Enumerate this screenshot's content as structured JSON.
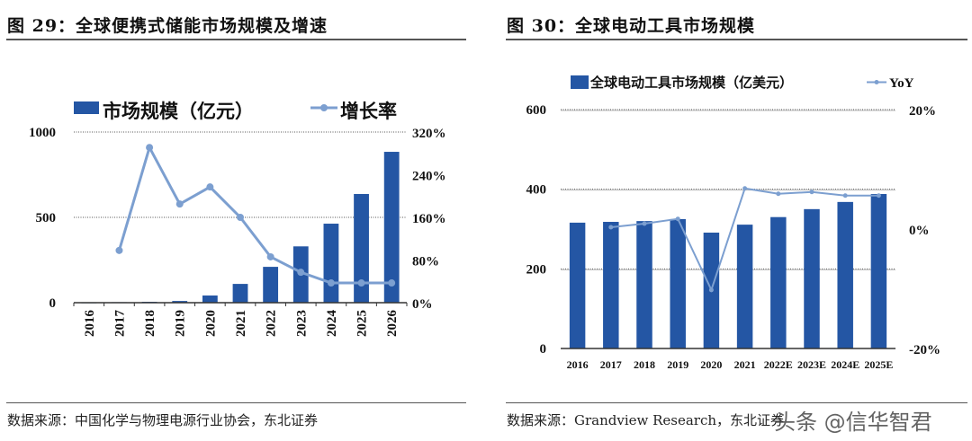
{
  "chart_data": [
    {
      "type": "bar",
      "title": "图 29：全球便携式储能市场规模及增速",
      "categories": [
        "2016",
        "2017",
        "2018",
        "2019",
        "2020",
        "2021",
        "2022",
        "2023",
        "2024",
        "2025",
        "2026"
      ],
      "series": [
        {
          "name": "市场规模（亿元）",
          "type": "bar",
          "axis": "left",
          "values": [
            2,
            3,
            5,
            10,
            42,
            110,
            210,
            330,
            463,
            637,
            884
          ]
        },
        {
          "name": "增长率",
          "type": "line",
          "axis": "right",
          "values": [
            null,
            98,
            291,
            185,
            217,
            160,
            86,
            57,
            37,
            37,
            37
          ]
        }
      ],
      "ylim": [
        0,
        1000
      ],
      "yticks": [
        "0",
        "500",
        "1000"
      ],
      "y2lim": [
        0,
        320
      ],
      "y2ticks": [
        "0%",
        "80%",
        "160%",
        "240%",
        "320%"
      ],
      "legend": "top",
      "source": "数据来源：中国化学与物理电源行业协会，东北证券"
    },
    {
      "type": "bar",
      "title": "图 30：全球电动工具市场规模",
      "categories": [
        "2016",
        "2017",
        "2018",
        "2019",
        "2020",
        "2021",
        "2022E",
        "2023E",
        "2024E",
        "2025E"
      ],
      "series": [
        {
          "name": "全球电动工具市场规模（亿美元）",
          "type": "bar",
          "axis": "left",
          "values": [
            316,
            318,
            320,
            325,
            291,
            311,
            330,
            350,
            368,
            388
          ]
        },
        {
          "name": "YoY",
          "type": "line",
          "axis": "right",
          "values": [
            null,
            0.3,
            0.9,
            1.7,
            -10.2,
            6.8,
            5.9,
            6.2,
            5.6,
            5.6
          ]
        }
      ],
      "ylim": [
        0,
        600
      ],
      "yticks": [
        "0",
        "200",
        "400",
        "600"
      ],
      "y2lim": [
        -20,
        20
      ],
      "y2ticks": [
        "-20%",
        "0%",
        "20%"
      ],
      "legend": "top",
      "source": "数据来源：Grandview Research，东北证券"
    }
  ],
  "colors": {
    "bar": "#2456a4",
    "line": "#7c9fd0"
  },
  "watermark": "头条 @信华智君"
}
